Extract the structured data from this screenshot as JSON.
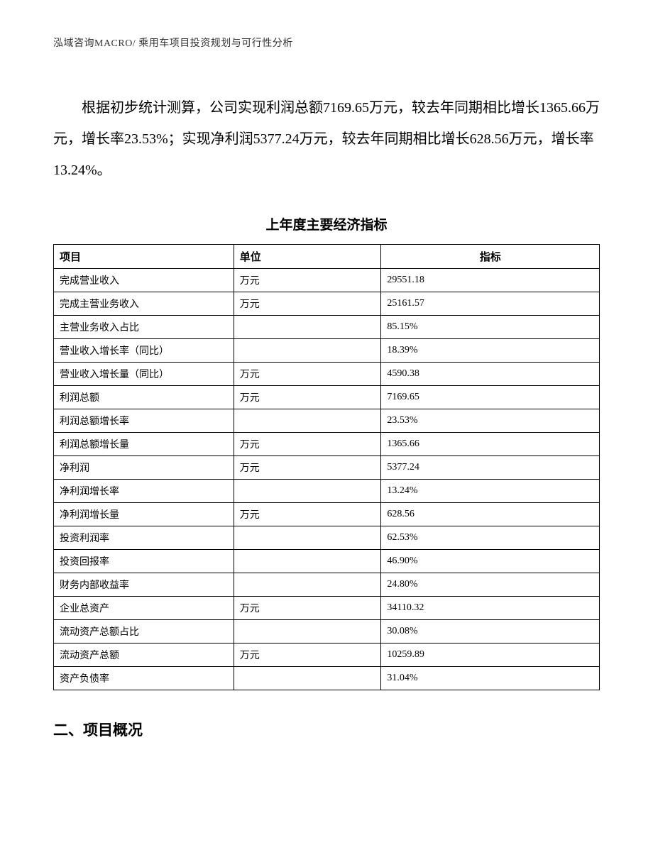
{
  "header": "泓域咨询MACRO/ 乘用车项目投资规划与可行性分析",
  "paragraph": "根据初步统计测算，公司实现利润总额7169.65万元，较去年同期相比增长1365.66万元，增长率23.53%；实现净利润5377.24万元，较去年同期相比增长628.56万元，增长率13.24%。",
  "table_title": "上年度主要经济指标",
  "table": {
    "columns": [
      "项目",
      "单位",
      "指标"
    ],
    "rows": [
      [
        "完成营业收入",
        "万元",
        "29551.18"
      ],
      [
        "完成主营业务收入",
        "万元",
        "25161.57"
      ],
      [
        "主营业务收入占比",
        "",
        "85.15%"
      ],
      [
        "营业收入增长率（同比）",
        "",
        "18.39%"
      ],
      [
        "营业收入增长量（同比）",
        "万元",
        "4590.38"
      ],
      [
        "利润总额",
        "万元",
        "7169.65"
      ],
      [
        "利润总额增长率",
        "",
        "23.53%"
      ],
      [
        "利润总额增长量",
        "万元",
        "1365.66"
      ],
      [
        "净利润",
        "万元",
        "5377.24"
      ],
      [
        "净利润增长率",
        "",
        "13.24%"
      ],
      [
        "净利润增长量",
        "万元",
        "628.56"
      ],
      [
        "投资利润率",
        "",
        "62.53%"
      ],
      [
        "投资回报率",
        "",
        "46.90%"
      ],
      [
        "财务内部收益率",
        "",
        "24.80%"
      ],
      [
        "企业总资产",
        "万元",
        "34110.32"
      ],
      [
        "流动资产总额占比",
        "",
        "30.08%"
      ],
      [
        "流动资产总额",
        "万元",
        "10259.89"
      ],
      [
        "资产负债率",
        "",
        "31.04%"
      ]
    ]
  },
  "section_heading": "二、项目概况"
}
